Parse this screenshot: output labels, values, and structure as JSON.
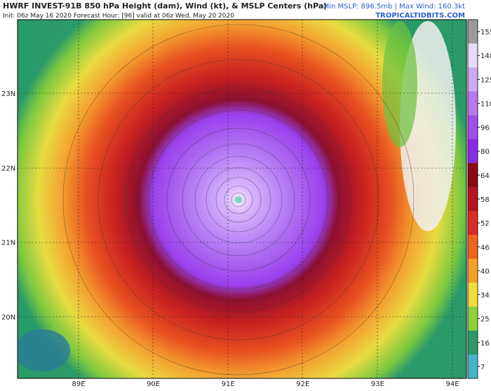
{
  "header": {
    "title": "HWRF INVEST-91B 850 hPa Height (dam), Wind (kt), & MSLP Centers (hPa)",
    "subtitle": "Init: 06z May 16 2020   Forecast Hour: [96]   valid at 06z Wed, May 20 2020",
    "stats": "Min MSLP: 896.5mb | Max Wind: 160.3kt",
    "site": "TROPICALTIDBITS.COM"
  },
  "map": {
    "lat_labels": [
      "23N",
      "22N",
      "21N",
      "20N"
    ],
    "lon_labels": [
      "89E",
      "90E",
      "91E",
      "92E",
      "93E",
      "94E"
    ]
  },
  "colorbar": {
    "ticks": [
      155,
      140,
      125,
      110,
      96,
      80,
      64,
      58,
      52,
      46,
      40,
      34,
      25,
      16,
      7
    ],
    "colors": [
      "#9a9a9a",
      "#e6dcf5",
      "#cfa8f5",
      "#b878f0",
      "#a04ef0",
      "#8a2be8",
      "#8b0a12",
      "#b4141e",
      "#dc2a24",
      "#f0641e",
      "#f5a028",
      "#f0dc3c",
      "#8cd23c",
      "#2a9a6a",
      "#46b4c8"
    ]
  }
}
